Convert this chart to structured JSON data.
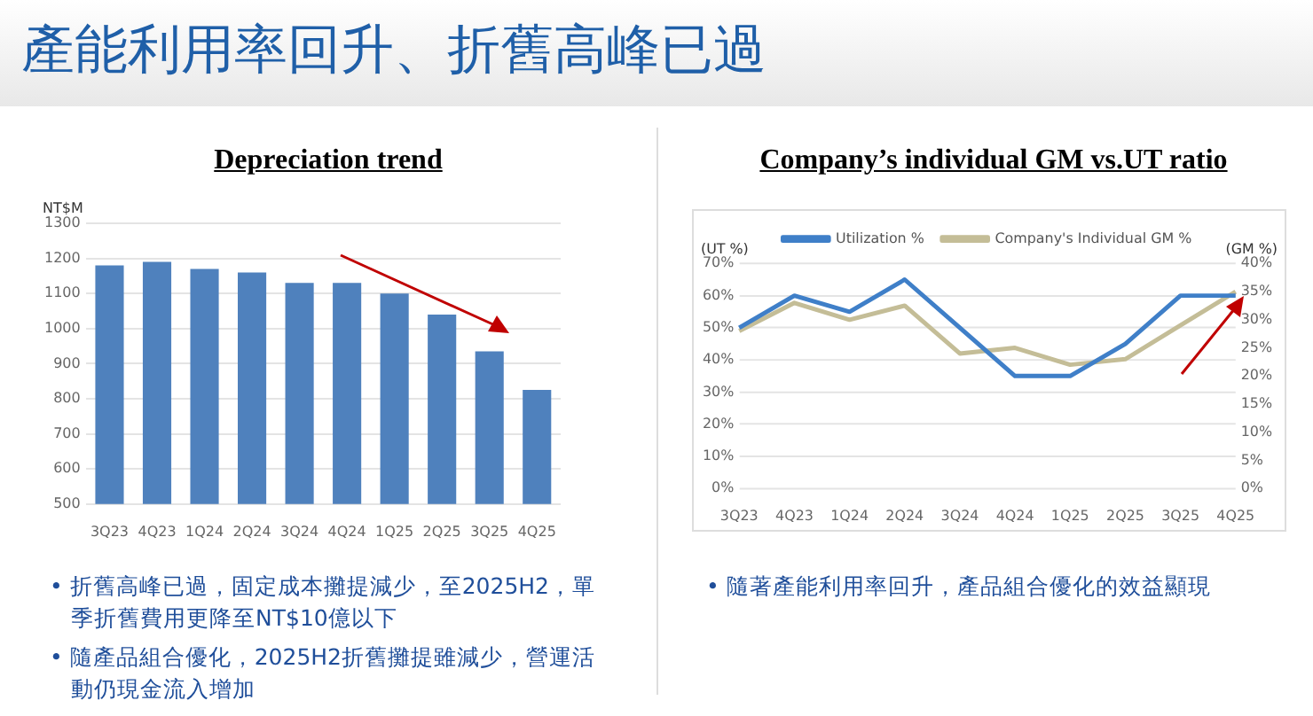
{
  "chart_data": [
    {
      "type": "bar",
      "title": "Depreciation trend",
      "ylabel": "NT$M",
      "categories": [
        "3Q23",
        "4Q23",
        "1Q24",
        "2Q24",
        "3Q24",
        "4Q24",
        "1Q25",
        "2Q25",
        "3Q25",
        "4Q25"
      ],
      "values": [
        1180,
        1190,
        1170,
        1160,
        1130,
        1130,
        1100,
        1040,
        935,
        825
      ],
      "color": "#4f81bd",
      "ylim": [
        500,
        1300
      ],
      "yticks": [
        500,
        600,
        700,
        800,
        900,
        1000,
        1100,
        1200,
        1300
      ],
      "grid": "y",
      "legend": false,
      "annotations": [
        "產能利用率回升、折舊高峰已過",
        "• 折舊高峰已過，固定成本攤提減少，至2025H2，單季折舊費用更降至NT$10億以下",
        "• 隨產品組合優化，2025H2折舊攤提雖減少，營運活動仍現金流入增加"
      ]
    },
    {
      "type": "line",
      "title": "Company’s individual GM vs.UT ratio",
      "ylabel": "(UT %)",
      "y2label": "(GM %)",
      "categories": [
        "3Q23",
        "4Q23",
        "1Q24",
        "2Q24",
        "3Q24",
        "4Q24",
        "1Q25",
        "2Q25",
        "3Q25",
        "4Q25"
      ],
      "series": [
        {
          "name": "Utilization %",
          "color": "#3f7fc8",
          "values": [
            50,
            60,
            55,
            65,
            50,
            35,
            35,
            45,
            60,
            60
          ]
        },
        {
          "name": "Company's Individual GM %",
          "color": "#c4bd97",
          "axis": "y2",
          "values": [
            28,
            33,
            30,
            32.5,
            24,
            25,
            22,
            23,
            29,
            35
          ]
        }
      ],
      "ylim": [
        0,
        70
      ],
      "yticks": [
        {
          "value": 0,
          "label": "0%"
        },
        {
          "value": 10,
          "label": "10%"
        },
        {
          "value": 20,
          "label": "20%"
        },
        {
          "value": 30,
          "label": "30%"
        },
        {
          "value": 40,
          "label": "40%"
        },
        {
          "value": 50,
          "label": "50%"
        },
        {
          "value": 60,
          "label": "60%"
        },
        {
          "value": 70,
          "label": "70%"
        }
      ],
      "y2lim": [
        0,
        40
      ],
      "y2ticks": [
        {
          "value": 0,
          "label": "0%"
        },
        {
          "value": 5,
          "label": "5%"
        },
        {
          "value": 10,
          "label": "10%"
        },
        {
          "value": 15,
          "label": "15%"
        },
        {
          "value": 20,
          "label": "20%"
        },
        {
          "value": 25,
          "label": "25%"
        },
        {
          "value": 30,
          "label": "30%"
        },
        {
          "value": 35,
          "label": "35%"
        },
        {
          "value": 40,
          "label": "40%"
        }
      ],
      "grid": "y",
      "legend": "top",
      "marker": "none",
      "line_style": "solid",
      "annotations": [
        "• 隨著產能利用率回升，產品組合優化的效益顯現"
      ]
    }
  ]
}
